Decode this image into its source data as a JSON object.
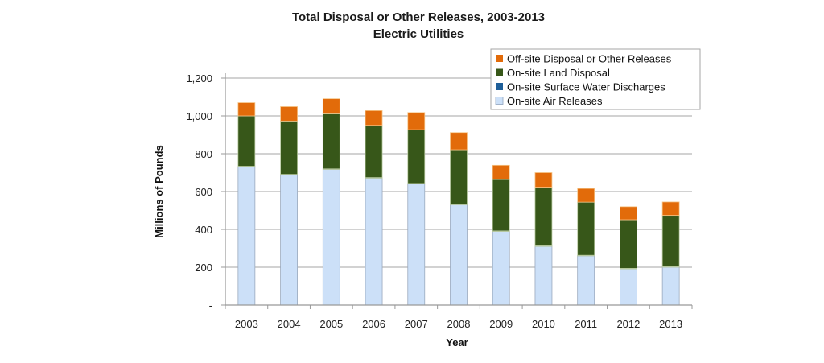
{
  "chart_data": {
    "type": "bar",
    "stacked": true,
    "title": "Total Disposal or Other Releases, 2003-2013",
    "subtitle": "Electric Utilities",
    "xlabel": "Year",
    "ylabel": "Millions of Pounds",
    "ylim": [
      0,
      1200
    ],
    "yticks": [
      0,
      200,
      400,
      600,
      800,
      1000,
      1200
    ],
    "ytick_labels": [
      "-",
      "200",
      "400",
      "600",
      "800",
      "1,000",
      "1,200"
    ],
    "grid": true,
    "legend_position": "top-right",
    "categories": [
      "2003",
      "2004",
      "2005",
      "2006",
      "2007",
      "2008",
      "2009",
      "2010",
      "2011",
      "2012",
      "2013"
    ],
    "series": [
      {
        "name": "On-site Air Releases",
        "color": "#cce0f8",
        "values": [
          731,
          688,
          717,
          671,
          640,
          530,
          389,
          310,
          260,
          191,
          200
        ]
      },
      {
        "name": "On-site Surface Water Discharges",
        "color": "#1f5f99",
        "values": [
          3,
          3,
          3,
          3,
          3,
          3,
          3,
          3,
          3,
          3,
          3
        ]
      },
      {
        "name": "On-site Land Disposal",
        "color": "#375719",
        "values": [
          266,
          282,
          291,
          276,
          284,
          288,
          272,
          310,
          281,
          257,
          271
        ]
      },
      {
        "name": "Off-site Disposal or Other Releases",
        "color": "#e26b0a",
        "values": [
          70,
          76,
          80,
          78,
          91,
          91,
          75,
          77,
          72,
          69,
          71
        ]
      }
    ],
    "legend_order": [
      "Off-site Disposal or Other Releases",
      "On-site Land Disposal",
      "On-site Surface Water Discharges",
      "On-site Air Releases"
    ]
  }
}
